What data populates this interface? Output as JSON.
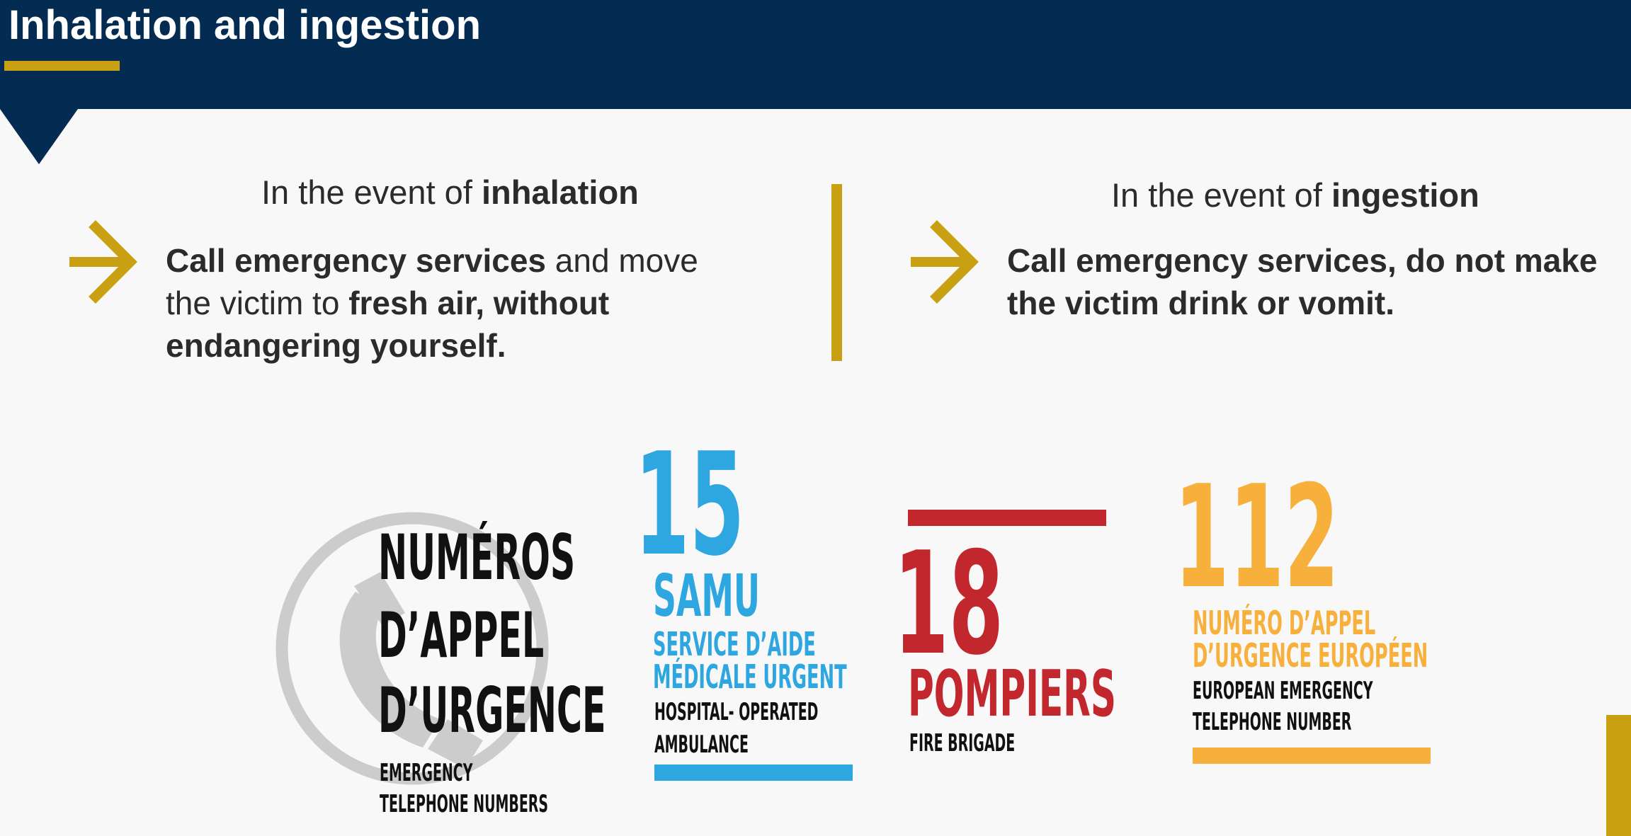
{
  "header": {
    "title": "Inhalation and ingestion"
  },
  "inhalation": {
    "title_prefix": "In the event of ",
    "title_bold": "inhalation",
    "line1_bold": "Call emergency services",
    "line1_rest": " and move",
    "line2_plain": "the victim to ",
    "line2_bold": "fresh air, without",
    "line3_bold": "endangering yourself."
  },
  "ingestion": {
    "title_prefix": "In the event of ",
    "title_bold": "ingestion",
    "line1_bold": "Call emergency services, do not make",
    "line2_bold": "the victim drink or vomit."
  },
  "numbers": {
    "heading_1": "NUMÉROS",
    "heading_2": "D’APPEL",
    "heading_3": "D’URGENCE",
    "heading_sub_1": "EMERGENCY",
    "heading_sub_2": "TELEPHONE NUMBERS",
    "samu": {
      "number": "15",
      "name": "SAMU",
      "fr_1": "SERVICE D’AIDE",
      "fr_2": "MÉDICALE URGENT",
      "en_1": "HOSPITAL- OPERATED",
      "en_2": "AMBULANCE"
    },
    "pompiers": {
      "number": "18",
      "name": "POMPIERS",
      "en": "FIRE BRIGADE"
    },
    "europe": {
      "number": "112",
      "fr_1": "NUMÉRO D’APPEL",
      "fr_2": "D’URGENCE EUROPÉEN",
      "en_1": "EUROPEAN EMERGENCY",
      "en_2": "TELEPHONE NUMBER"
    }
  },
  "colors": {
    "navy": "#042c52",
    "gold": "#c8a012",
    "samu_blue": "#2ea6e0",
    "pompiers_red": "#c1272d",
    "europe_orange": "#f8b03c",
    "icon_gray": "#cccccc"
  },
  "icons": {
    "arrow": "arrow-right-icon",
    "phone": "phone-icon"
  }
}
